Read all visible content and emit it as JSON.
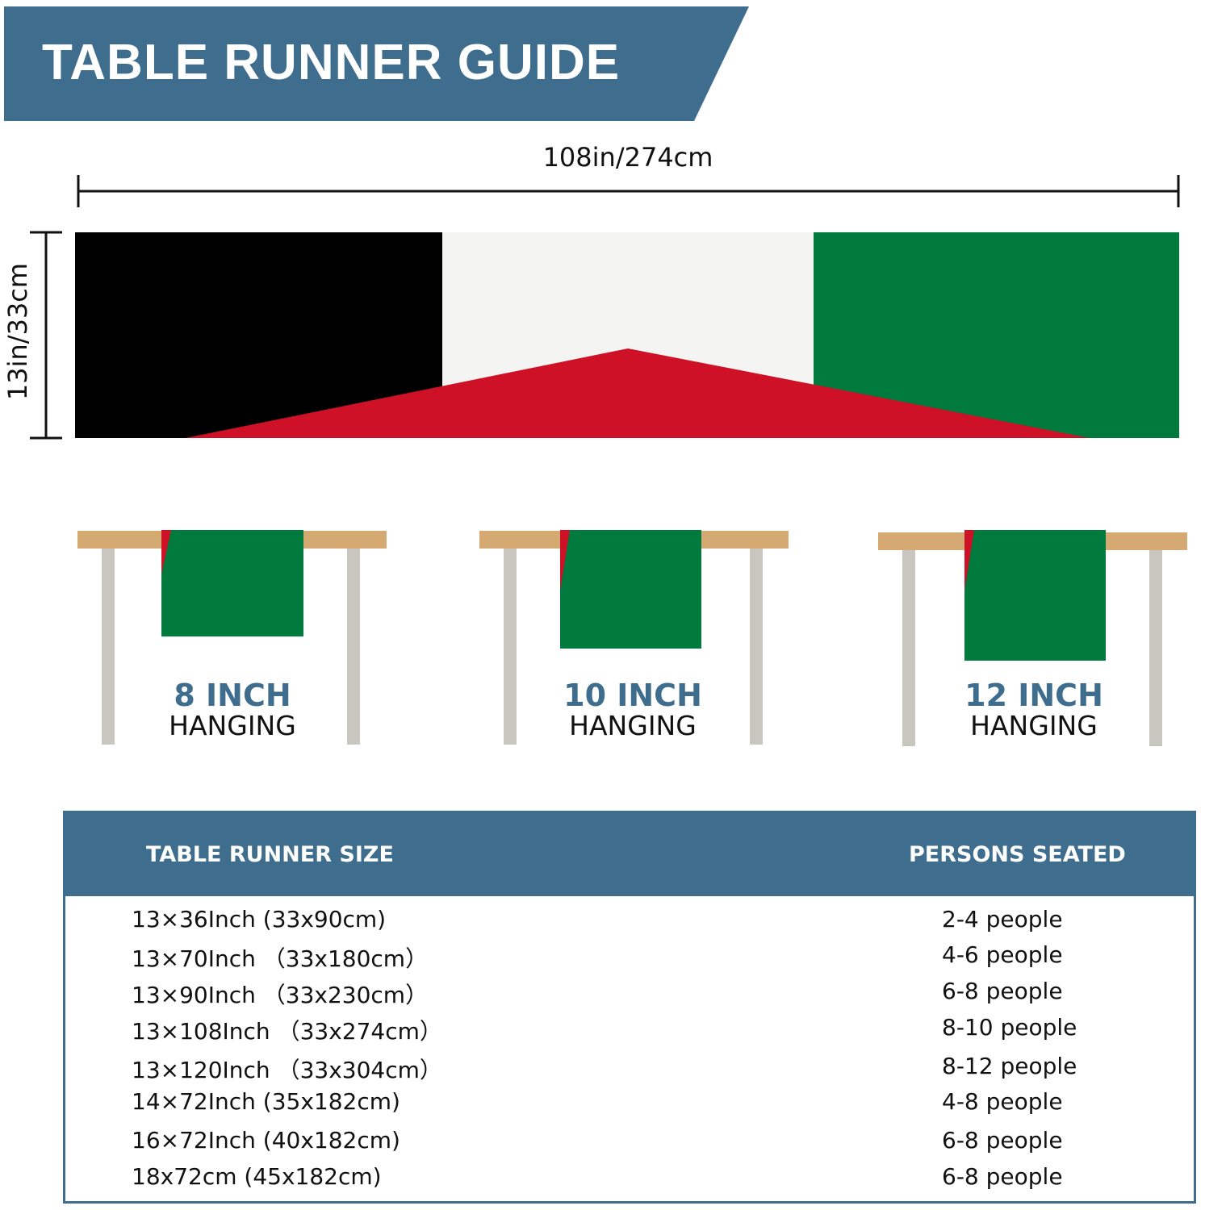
{
  "title": "TABLE RUNNER GUIDE",
  "dimensions": {
    "length": "108in/274cm",
    "width": "13in/33cm"
  },
  "colors": {
    "brand": "#3e6d8e",
    "flag_black": "#000000",
    "flag_white": "#ffffff",
    "flag_green": "#007a3d",
    "flag_red": "#ce1126",
    "table_top": "#d4aa72",
    "table_leg": "#c9c5bf"
  },
  "hanging": [
    {
      "size": "8 INCH",
      "label": "HANGING"
    },
    {
      "size": "10 INCH",
      "label": "HANGING"
    },
    {
      "size": "12 INCH",
      "label": "HANGING"
    }
  ],
  "table": {
    "headers": [
      "TABLE RUNNER SIZE",
      "PERSONS SEATED"
    ],
    "rows": [
      [
        "13×36Inch (33x90cm)",
        "2-4 people"
      ],
      [
        "13×70Inch （33x180cm）",
        "4-6 people"
      ],
      [
        "13×90Inch （33x230cm）",
        "6-8 people"
      ],
      [
        "13×108Inch （33x274cm）",
        "8-10 people"
      ],
      [
        "13×120Inch （33x304cm）",
        "8-12 people"
      ],
      [
        "14×72Inch (35x182cm)",
        "4-8 people"
      ],
      [
        "16×72Inch (40x182cm)",
        "6-8 people"
      ],
      [
        "18x72cm (45x182cm)",
        "6-8 people"
      ]
    ]
  }
}
